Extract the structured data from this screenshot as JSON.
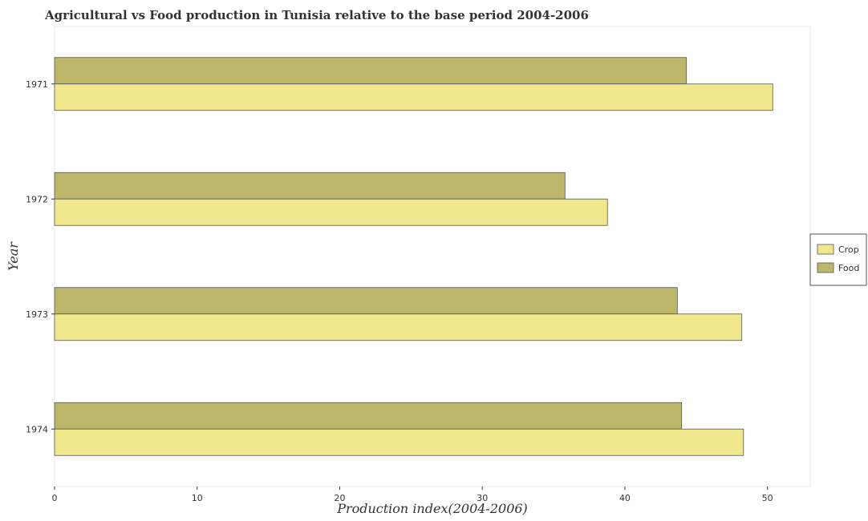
{
  "chart_data": {
    "type": "bar",
    "orientation": "horizontal",
    "title": "Agricultural vs Food production in Tunisia relative to the base period 2004-2006",
    "xlabel": "Production index(2004-2006)",
    "ylabel": "Year",
    "categories": [
      "1971",
      "1972",
      "1973",
      "1974"
    ],
    "series": [
      {
        "name": "Crop",
        "color": "#f0e68c",
        "values": [
          50.37,
          38.78,
          48.2,
          48.32
        ]
      },
      {
        "name": "Food",
        "color": "#bdb76b",
        "values": [
          44.32,
          35.8,
          43.68,
          43.98
        ]
      }
    ],
    "xlim": [
      0,
      53
    ],
    "xticks": [
      0,
      10,
      20,
      30,
      40,
      50
    ],
    "grid": false,
    "legend_position": "right"
  }
}
